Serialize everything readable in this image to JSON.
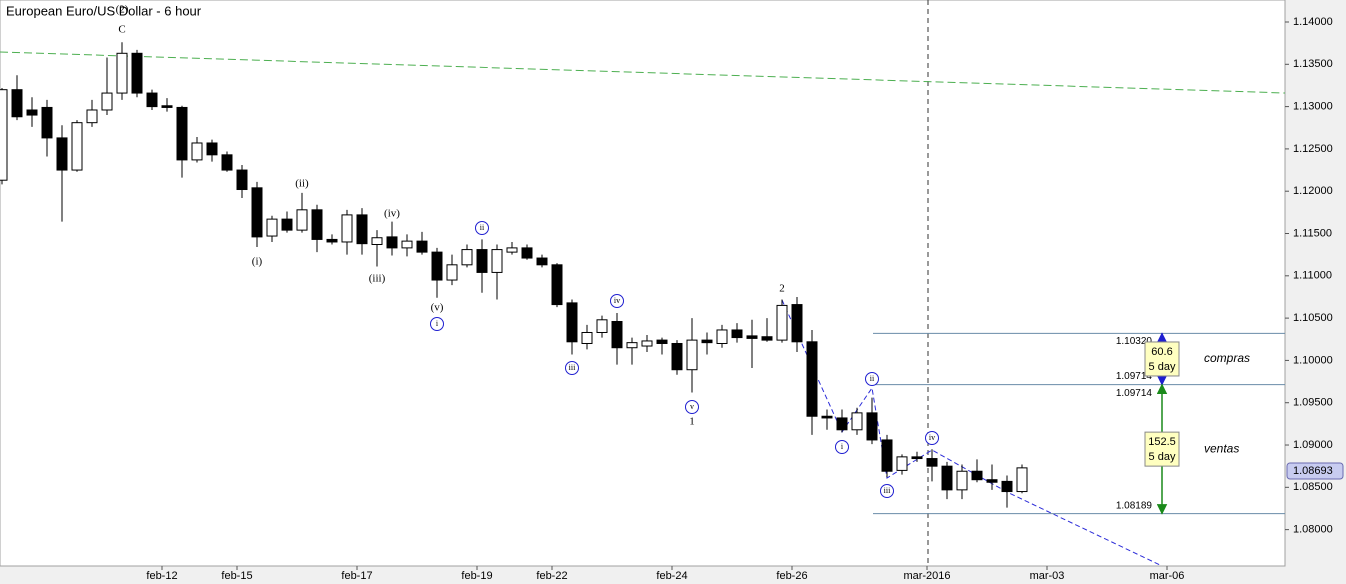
{
  "chart_data": {
    "type": "candlestick",
    "title": "European Euro/US Dollar - 6 hour",
    "categories": [
      null,
      null,
      null,
      null,
      null,
      null,
      null,
      null,
      null,
      null,
      "feb-12",
      null,
      null,
      null,
      null,
      "feb-15",
      null,
      null,
      null,
      null,
      null,
      null,
      null,
      "feb-17",
      null,
      null,
      null,
      null,
      null,
      null,
      null,
      "feb-19",
      null,
      null,
      null,
      null,
      "feb-22",
      null,
      null,
      null,
      null,
      null,
      null,
      null,
      "feb-24",
      null,
      null,
      null,
      null,
      null,
      null,
      null,
      "feb-26",
      null,
      null,
      null,
      null,
      null,
      null,
      null,
      null,
      "mar-2016",
      null,
      null,
      null,
      null,
      null,
      null,
      null,
      "mar-03",
      null,
      null,
      null,
      null,
      null,
      null,
      null,
      "mar-06",
      null,
      null,
      null,
      null,
      null,
      null,
      null,
      null
    ],
    "open": [
      1.1213,
      1.132,
      1.1296,
      1.1299,
      1.1263,
      1.1225,
      1.1281,
      1.1296,
      1.1316,
      1.1363,
      1.1316,
      1.1301,
      1.1299,
      1.1237,
      1.1257,
      1.1243,
      1.1225,
      1.1204,
      1.1147,
      1.1167,
      1.1154,
      1.1178,
      1.1143,
      1.114,
      1.1172,
      1.1137,
      1.1146,
      1.1133,
      1.1141,
      1.1128,
      1.1095,
      1.1113,
      1.1131,
      1.1104,
      1.1128,
      1.1133,
      1.1121,
      1.1113,
      1.1068,
      1.102,
      1.1033,
      1.1046,
      1.1015,
      1.1017,
      1.1024,
      1.102,
      1.0989,
      1.1024,
      1.102,
      1.1036,
      1.1029,
      1.1028,
      1.1024,
      1.1066,
      1.1022,
      1.0934,
      1.0932,
      1.0918,
      1.0938,
      1.0906,
      1.087,
      1.0886,
      1.0884,
      1.0875,
      1.0847,
      1.0869,
      1.0859,
      1.0857,
      1.0845,
      null,
      null,
      null,
      null,
      null,
      null,
      null,
      null,
      null,
      null,
      null,
      null,
      null,
      null,
      null,
      null,
      null
    ],
    "high": [
      1.1322,
      1.1337,
      1.1311,
      1.1308,
      1.1278,
      1.1284,
      1.1308,
      1.1358,
      1.1376,
      1.1367,
      1.132,
      1.131,
      1.1301,
      1.1264,
      1.1261,
      1.1247,
      1.1231,
      1.1211,
      1.1171,
      1.1176,
      1.1198,
      1.1184,
      1.1149,
      1.1178,
      1.118,
      1.1154,
      1.1164,
      1.1149,
      1.1152,
      1.1133,
      1.1125,
      1.1137,
      1.1143,
      1.1137,
      1.114,
      1.1137,
      1.1125,
      1.1115,
      1.1072,
      1.1042,
      1.1053,
      1.1056,
      1.1027,
      1.103,
      1.1027,
      1.1024,
      1.105,
      1.1033,
      1.1042,
      1.1044,
      1.1048,
      1.105,
      1.1072,
      1.1075,
      1.1036,
      1.0942,
      1.0942,
      1.0944,
      1.0956,
      1.0912,
      1.0889,
      1.0892,
      1.0895,
      1.088,
      1.0877,
      1.0883,
      1.0877,
      1.0864,
      1.0877,
      null,
      null,
      null,
      null,
      null,
      null,
      null,
      null,
      null,
      null,
      null,
      null,
      null,
      null,
      null,
      null,
      null
    ],
    "low": [
      1.1208,
      1.1284,
      1.1276,
      1.1241,
      1.1164,
      1.1223,
      1.1276,
      1.129,
      1.1308,
      1.1311,
      1.1296,
      1.1294,
      1.1216,
      1.1234,
      1.1235,
      1.1223,
      1.1192,
      1.1134,
      1.114,
      1.1151,
      1.1151,
      1.1128,
      1.1137,
      1.1125,
      1.1125,
      1.1111,
      1.1124,
      1.1123,
      1.1125,
      1.1074,
      1.1089,
      1.111,
      1.108,
      1.1072,
      1.1125,
      1.1119,
      1.111,
      1.1063,
      1.1007,
      1.1013,
      1.1027,
      1.0995,
      1.0995,
      1.101,
      1.1007,
      1.0983,
      1.0962,
      1.1007,
      1.1015,
      1.1021,
      1.0991,
      1.1022,
      1.1021,
      1.101,
      1.0912,
      1.0918,
      1.0915,
      1.0912,
      1.0901,
      1.0862,
      1.0865,
      1.088,
      1.0857,
      1.0836,
      1.0836,
      1.0856,
      1.0847,
      1.0826,
      1.0843,
      null,
      null,
      null,
      null,
      null,
      null,
      null,
      null,
      null,
      null,
      null,
      null,
      null,
      null,
      null,
      null,
      null
    ],
    "close": [
      1.132,
      1.1288,
      1.129,
      1.1263,
      1.1225,
      1.1281,
      1.1296,
      1.1316,
      1.1363,
      1.1316,
      1.13,
      1.1299,
      1.1237,
      1.1257,
      1.1243,
      1.1225,
      1.1202,
      1.1146,
      1.1167,
      1.1154,
      1.1178,
      1.1143,
      1.114,
      1.1172,
      1.1138,
      1.1145,
      1.1133,
      1.1141,
      1.1128,
      1.1095,
      1.1113,
      1.1131,
      1.1104,
      1.1131,
      1.1133,
      1.1121,
      1.1113,
      1.1066,
      1.1022,
      1.1033,
      1.1048,
      1.1015,
      1.1021,
      1.1023,
      1.102,
      1.0989,
      1.1024,
      1.1021,
      1.1036,
      1.1027,
      1.1026,
      1.1024,
      1.1065,
      1.1022,
      1.0934,
      1.0932,
      1.0918,
      1.0938,
      1.0906,
      1.0869,
      1.0886,
      1.0884,
      1.0875,
      1.0847,
      1.0869,
      1.0859,
      1.0856,
      1.0845,
      1.0873,
      null,
      null,
      null,
      null,
      null,
      null,
      null,
      null,
      null,
      null,
      null,
      null,
      null,
      null,
      null,
      null,
      null
    ],
    "ylim": [
      1.0757,
      1.1426
    ],
    "yticks": [
      {
        "value": 1.08,
        "label": "1.08000"
      },
      {
        "value": 1.085,
        "label": "1.08500"
      },
      {
        "value": 1.09,
        "label": "1.09000"
      },
      {
        "value": 1.095,
        "label": "1.09500"
      },
      {
        "value": 1.1,
        "label": "1.10000"
      },
      {
        "value": 1.105,
        "label": "1.10500"
      },
      {
        "value": 1.11,
        "label": "1.11000"
      },
      {
        "value": 1.115,
        "label": "1.11500"
      },
      {
        "value": 1.12,
        "label": "1.12000"
      },
      {
        "value": 1.125,
        "label": "1.12500"
      },
      {
        "value": 1.13,
        "label": "1.13000"
      },
      {
        "value": 1.135,
        "label": "1.13500"
      },
      {
        "value": 1.14,
        "label": "1.14000"
      }
    ],
    "last_price": {
      "value": 1.08693,
      "label": "1.08693"
    },
    "levels": [
      {
        "value": 1.1032,
        "label": "1.10320"
      },
      {
        "value": 1.09714,
        "label": "1.09714"
      },
      {
        "value": 1.08189,
        "label": "1.08189"
      }
    ],
    "ranges": [
      {
        "name": "compras",
        "value": 60.6,
        "period": "5 day",
        "color": "#1f1fd0"
      },
      {
        "name": "ventas",
        "value": 152.5,
        "period": "5 day",
        "color": "#1a8a1a"
      }
    ],
    "wave_labels": [
      {
        "text": "(2)",
        "color": "#2e8b2e",
        "circled": false
      },
      {
        "text": "C",
        "color": "#b0179b",
        "circled": false
      },
      {
        "text": "(i)",
        "color": "#c00000",
        "circled": false
      },
      {
        "text": "(ii)",
        "color": "#c00000",
        "circled": false
      },
      {
        "text": "(iii)",
        "color": "#c00000",
        "circled": false
      },
      {
        "text": "(iv)",
        "color": "#c00000",
        "circled": false
      },
      {
        "text": "(v)",
        "color": "#c00000",
        "circled": false
      },
      {
        "text": "i",
        "color": "#1f1fd0",
        "circled": true
      },
      {
        "text": "ii",
        "color": "#1f1fd0",
        "circled": true
      },
      {
        "text": "iii",
        "color": "#1f1fd0",
        "circled": true
      },
      {
        "text": "iv",
        "color": "#1f1fd0",
        "circled": true
      },
      {
        "text": "v",
        "color": "#1f1fd0",
        "circled": true
      },
      {
        "text": "1",
        "color": "#8b1a8b",
        "circled": false
      },
      {
        "text": "2",
        "color": "#8b1a8b",
        "circled": false
      },
      {
        "text": "i",
        "color": "#1f1fd0",
        "circled": true
      },
      {
        "text": "ii",
        "color": "#1f1fd0",
        "circled": true
      },
      {
        "text": "iii",
        "color": "#1f1fd0",
        "circled": true
      },
      {
        "text": "iv",
        "color": "#1f1fd0",
        "circled": true
      }
    ]
  }
}
